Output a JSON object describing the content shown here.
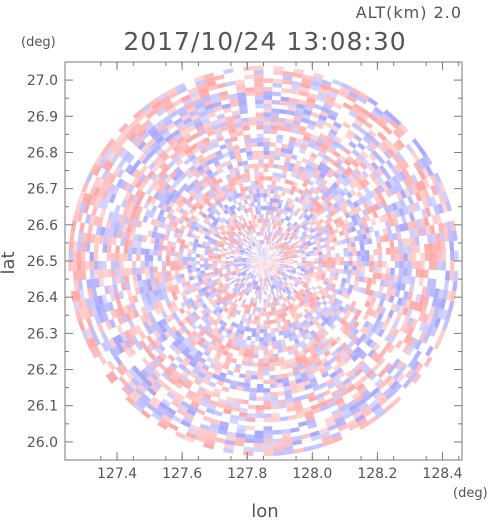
{
  "header": {
    "altitude": "ALT(km) 2.0",
    "timestamp": "2017/10/24 13:08:30"
  },
  "chart_data": {
    "type": "heatmap",
    "title": "2017/10/24 13:08:30",
    "subtitle": "ALT(km) 2.0",
    "xlabel": "lon",
    "ylabel": "lat",
    "x_unit": "(deg)",
    "y_unit": "(deg)",
    "xlim": [
      127.24,
      128.46
    ],
    "ylim": [
      25.95,
      27.05
    ],
    "x_ticks": [
      127.4,
      127.6,
      127.8,
      128.0,
      128.2,
      128.4
    ],
    "x_tick_labels": [
      "127.4",
      "127.6",
      "127.8",
      "128.0",
      "128.2",
      "128.4"
    ],
    "y_ticks": [
      26.0,
      26.1,
      26.2,
      26.3,
      26.4,
      26.5,
      26.6,
      26.7,
      26.8,
      26.9,
      27.0
    ],
    "y_tick_labels": [
      "26.0",
      "26.1",
      "26.2",
      "26.3",
      "26.4",
      "26.5",
      "26.6",
      "26.7",
      "26.8",
      "26.9",
      "27.0"
    ],
    "radar_center": {
      "lon": 127.85,
      "lat": 26.5
    },
    "radar_radius_deg_lon": 0.6,
    "grid": false,
    "colors": {
      "positive": "#ff8c8c",
      "negative": "#8c8cff",
      "neutral": "#ffffff"
    }
  }
}
